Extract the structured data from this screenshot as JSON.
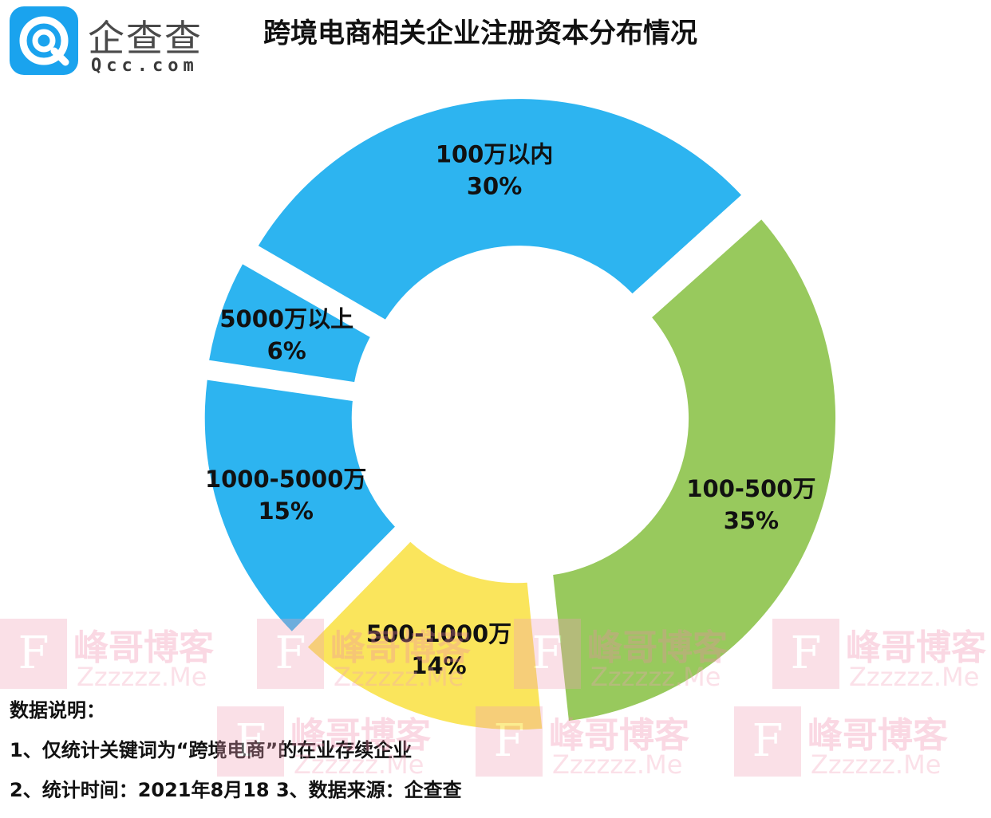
{
  "logo": {
    "name_cn": "企查查",
    "name_en": "Qcc.com",
    "icon": "qcc-logo-icon",
    "brand_color": "#1aa3ee"
  },
  "title": "跨境电商相关企业注册资本分布情况",
  "chart_data": {
    "type": "pie",
    "variant": "donut",
    "title": "跨境电商相关企业注册资本分布情况",
    "series": [
      {
        "label": "100万以内",
        "value": 30,
        "percent_label": "30%",
        "color": "#2db4f0"
      },
      {
        "label": "100-500万",
        "value": 35,
        "percent_label": "35%",
        "color": "#98c95d"
      },
      {
        "label": "500-1000万",
        "value": 14,
        "percent_label": "14%",
        "color": "#fae55c"
      },
      {
        "label": "1000-5000万",
        "value": 15,
        "percent_label": "15%",
        "color": "#2db4f0"
      },
      {
        "label": "5000万以上",
        "value": 6,
        "percent_label": "6%",
        "color": "#2db4f0"
      }
    ],
    "unit": "%"
  },
  "notes": {
    "heading": "数据说明：",
    "line1": "1、仅统计关键词为“跨境电商”的在业存续企业",
    "line2": "2、统计时间：2021年8月18   3、数据来源：企查查"
  },
  "watermark": {
    "cn": "峰哥博客",
    "en": "Zzzzzz.Me",
    "letter": "F"
  }
}
